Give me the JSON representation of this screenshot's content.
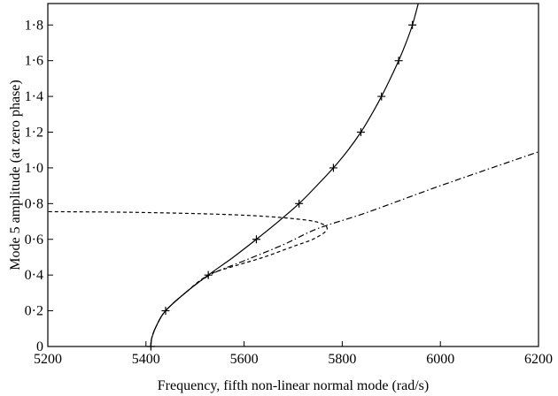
{
  "chart_data": {
    "type": "line",
    "title": "",
    "xlabel": "Frequency, fifth non-linear normal mode (rad/s)",
    "ylabel": "Mode 5 amplitude (at zero phase)",
    "xlim": [
      5200,
      6200
    ],
    "ylim": [
      0,
      1.92
    ],
    "xticks": [
      5200,
      5400,
      5600,
      5800,
      6000,
      6200
    ],
    "xtick_labels": [
      "5200",
      "5400",
      "5600",
      "5800",
      "6000",
      "6200"
    ],
    "yticks": [
      0,
      0.2,
      0.4,
      0.6,
      0.8,
      1.0,
      1.2,
      1.4,
      1.6,
      1.8
    ],
    "ytick_labels": [
      "0",
      "0·2",
      "0·4",
      "0·6",
      "0·8",
      "1·0",
      "1·2",
      "1·4",
      "1·6",
      "1·8"
    ],
    "grid": false,
    "series": [
      {
        "style": "solid",
        "points": [
          [
            5410,
            0.0
          ],
          [
            5412,
            0.05
          ],
          [
            5422,
            0.12
          ],
          [
            5440,
            0.2
          ],
          [
            5480,
            0.3
          ],
          [
            5527,
            0.4
          ],
          [
            5578,
            0.5
          ],
          [
            5625,
            0.6
          ],
          [
            5670,
            0.7
          ],
          [
            5712,
            0.8
          ],
          [
            5748,
            0.9
          ],
          [
            5782,
            1.0
          ],
          [
            5812,
            1.1
          ],
          [
            5838,
            1.2
          ],
          [
            5860,
            1.3
          ],
          [
            5880,
            1.4
          ],
          [
            5898,
            1.5
          ],
          [
            5915,
            1.6
          ],
          [
            5930,
            1.7
          ],
          [
            5943,
            1.8
          ],
          [
            5955,
            1.92
          ]
        ]
      },
      {
        "style": "crosses",
        "points": [
          [
            5410,
            0.0
          ],
          [
            5440,
            0.2
          ],
          [
            5527,
            0.4
          ],
          [
            5625,
            0.6
          ],
          [
            5712,
            0.8
          ],
          [
            5782,
            1.0
          ],
          [
            5838,
            1.2
          ],
          [
            5880,
            1.4
          ],
          [
            5915,
            1.6
          ],
          [
            5943,
            1.8
          ]
        ]
      },
      {
        "style": "dashed",
        "points": [
          [
            5410,
            0.0
          ],
          [
            5412,
            0.05
          ],
          [
            5422,
            0.12
          ],
          [
            5440,
            0.2
          ],
          [
            5480,
            0.3
          ],
          [
            5527,
            0.4
          ],
          [
            5580,
            0.45
          ],
          [
            5640,
            0.5
          ],
          [
            5700,
            0.56
          ],
          [
            5740,
            0.6
          ],
          [
            5768,
            0.65
          ],
          [
            5760,
            0.685
          ],
          [
            5720,
            0.71
          ],
          [
            5600,
            0.735
          ],
          [
            5400,
            0.75
          ],
          [
            5200,
            0.755
          ]
        ]
      },
      {
        "style": "dash-dot",
        "points": [
          [
            5410,
            0.0
          ],
          [
            5412,
            0.05
          ],
          [
            5422,
            0.12
          ],
          [
            5440,
            0.2
          ],
          [
            5480,
            0.3
          ],
          [
            5530,
            0.4
          ],
          [
            5600,
            0.48
          ],
          [
            5680,
            0.57
          ],
          [
            5750,
            0.66
          ],
          [
            5850,
            0.75
          ],
          [
            6000,
            0.9
          ],
          [
            6200,
            1.09
          ]
        ]
      }
    ]
  }
}
